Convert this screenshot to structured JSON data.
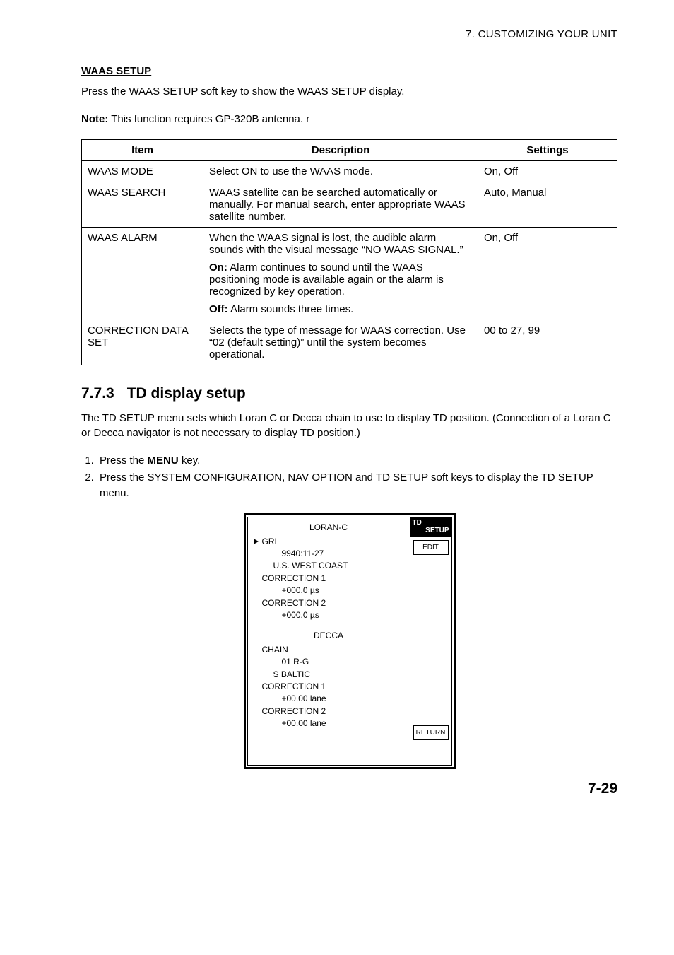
{
  "header": {
    "chapter_title": "7. CUSTOMIZING YOUR UNIT"
  },
  "waas_setup": {
    "heading": "WAAS SETUP",
    "intro": "Press the WAAS SETUP soft key to show the WAAS SETUP display.",
    "note_label": "Note:",
    "note_text": " This function requires GP-320B antenna. r"
  },
  "table": {
    "headers": {
      "item": "Item",
      "desc": "Description",
      "settings": "Settings"
    },
    "rows": [
      {
        "item": "WAAS MODE",
        "desc": [
          {
            "plain": "Select ON to use the WAAS mode."
          }
        ],
        "settings": "On, Off"
      },
      {
        "item": "WAAS SEARCH",
        "desc": [
          {
            "plain": "WAAS satellite can be searched automatically or manually. For manual search, enter appropriate WAAS satellite number."
          }
        ],
        "settings": "Auto, Manual"
      },
      {
        "item": "WAAS ALARM",
        "desc": [
          {
            "plain": "When the WAAS signal is lost, the audible alarm sounds with the visual message “NO WAAS SIGNAL.”"
          },
          {
            "bold": "On:",
            "rest": " Alarm continues to sound until the WAAS positioning mode is available again or the alarm is recognized by key operation."
          },
          {
            "bold": "Off:",
            "rest": " Alarm sounds three times."
          }
        ],
        "settings": "On, Off"
      },
      {
        "item": "CORRECTION DATA SET",
        "desc": [
          {
            "plain": "Selects the type of message for WAAS correction. Use “02 (default setting)” until the system becomes operational."
          }
        ],
        "settings": "00 to 27, 99"
      }
    ]
  },
  "td_section": {
    "number": "7.7.3",
    "title": "TD display setup",
    "intro": "The TD SETUP menu sets which Loran C or Decca chain to use to display TD position. (Connection of a Loran C or Decca navigator is not necessary to display TD position.)",
    "steps": [
      {
        "pre": "Press the ",
        "bold": "MENU",
        "post": " key."
      },
      {
        "pre": "Press the SYSTEM CONFIGURATION, NAV OPTION and TD SETUP soft keys to display the TD SETUP menu.",
        "bold": "",
        "post": ""
      }
    ]
  },
  "menu": {
    "loran_title": "LORAN-C",
    "gri_label": "GRI",
    "gri_val": "9940:11-27",
    "gri_region": "U.S. WEST COAST",
    "corr1_label": "CORRECTION 1",
    "corr1_val": "+000.0 µs",
    "corr2_label": "CORRECTION 2",
    "corr2_val": "+000.0 µs",
    "decca_title": "DECCA",
    "chain_label": "CHAIN",
    "chain_val": "01    R-G",
    "chain_region": "S BALTIC",
    "d_corr1_label": "CORRECTION 1",
    "d_corr1_val": "+00.00 lane",
    "d_corr2_label": "CORRECTION 2",
    "d_corr2_val": "+00.00 lane",
    "right_header_l1": "TD",
    "right_header_l2": "SETUP",
    "btn_edit": "EDIT",
    "btn_return": "RETURN"
  },
  "footer": {
    "page": "7-29"
  }
}
